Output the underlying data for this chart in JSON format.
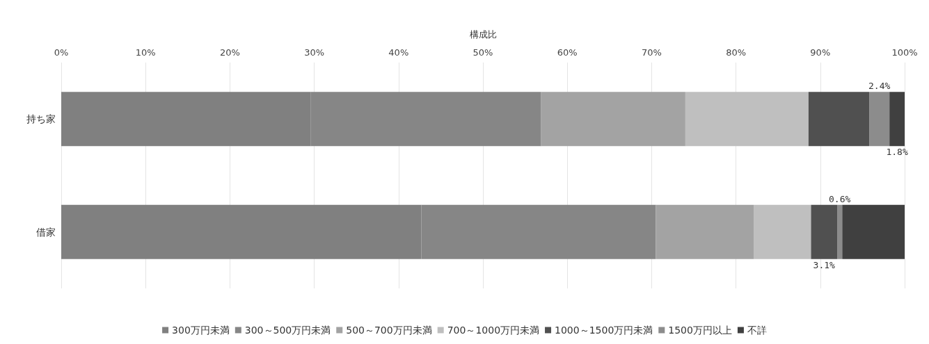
{
  "chart_data": {
    "type": "bar",
    "orientation": "horizontal",
    "stacked": true,
    "xlabel": "構成比",
    "categories": [
      "持ち家",
      "借家"
    ],
    "xlim": [
      0,
      100
    ],
    "xticks": [
      {
        "value": 0,
        "label": "0%"
      },
      {
        "value": 10,
        "label": "10%"
      },
      {
        "value": 20,
        "label": "20%"
      },
      {
        "value": 30,
        "label": "30%"
      },
      {
        "value": 40,
        "label": "40%"
      },
      {
        "value": 50,
        "label": "50%"
      },
      {
        "value": 60,
        "label": "60%"
      },
      {
        "value": 70,
        "label": "70%"
      },
      {
        "value": 80,
        "label": "80%"
      },
      {
        "value": 90,
        "label": "90%"
      },
      {
        "value": 100,
        "label": "100%"
      }
    ],
    "grid": "x",
    "legend": "bottom",
    "series": [
      {
        "name": "300万円未満",
        "color": "#808080",
        "values": [
          29.6,
          42.7
        ]
      },
      {
        "name": "300～500万円未満",
        "color": "#868686",
        "values": [
          27.3,
          27.8
        ]
      },
      {
        "name": "500～700万円未満",
        "color": "#a3a3a3",
        "values": [
          17.1,
          11.6
        ]
      },
      {
        "name": "700～1000万円未満",
        "color": "#bfbfbf",
        "values": [
          14.6,
          6.8
        ]
      },
      {
        "name": "1000～1500万円未満",
        "color": "#505050",
        "values": [
          7.2,
          3.1
        ],
        "value_labels": [
          null,
          "3.1%"
        ]
      },
      {
        "name": "1500万円以上",
        "color": "#8c8c8c",
        "values": [
          2.4,
          0.6
        ],
        "value_labels": [
          "2.4%",
          "0.6%"
        ]
      },
      {
        "name": "不詳",
        "color": "#404040",
        "values": [
          1.8,
          7.4
        ],
        "value_labels": [
          "1.8%",
          null
        ]
      }
    ]
  }
}
